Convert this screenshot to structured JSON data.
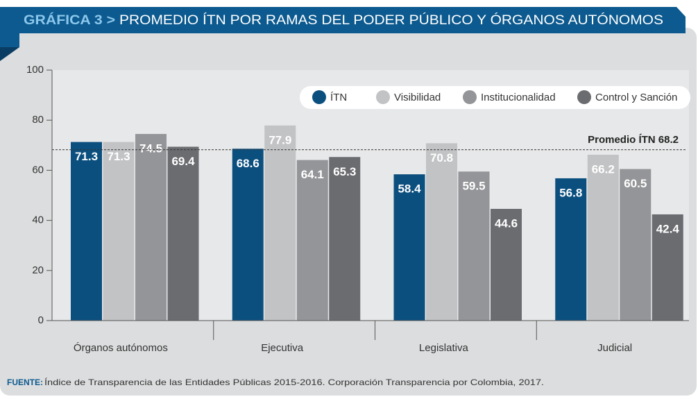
{
  "chart_data": {
    "type": "bar",
    "label": "GRÁFICA 3 >",
    "title": "PROMEDIO ÍTN POR RAMAS DEL PODER PÚBLICO Y ÓRGANOS AUTÓNOMOS",
    "categories": [
      "Órganos autónomos",
      "Ejecutiva",
      "Legislativa",
      "Judicial"
    ],
    "series": [
      {
        "name": "ÍTN",
        "color": "#0b4f7f",
        "values": [
          71.3,
          68.6,
          58.4,
          56.8
        ]
      },
      {
        "name": "Visibilidad",
        "color": "#c2c3c5",
        "values": [
          71.3,
          77.9,
          70.8,
          66.2
        ]
      },
      {
        "name": "Institucionalidad",
        "color": "#949598",
        "values": [
          74.5,
          64.1,
          59.5,
          60.5
        ]
      },
      {
        "name": "Control y Sanción",
        "color": "#6b6c70",
        "values": [
          69.4,
          65.3,
          44.6,
          42.4
        ]
      }
    ],
    "reference_line": {
      "value": 68.2,
      "label": "Promedio ÍTN 68.2"
    },
    "ylim": [
      0,
      100
    ],
    "yticks": [
      0,
      20,
      40,
      60,
      80,
      100
    ],
    "legend": "top-right",
    "source": {
      "label": "FUENTE:",
      "text": "Índice de Transparencia de las Entidades Públicas 2015-2016. Corporación Transparencia por Colombia, 2017."
    }
  }
}
